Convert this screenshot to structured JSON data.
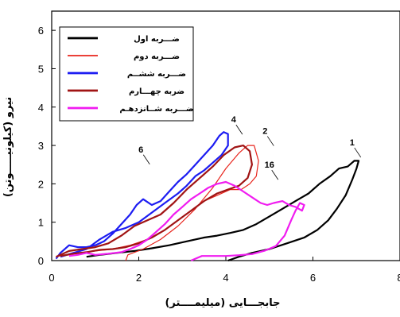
{
  "chart_data": {
    "type": "line",
    "xlabel": "جابجـــایی (میلیمــــتر)",
    "ylabel": "نیرو (کیلونیـــــوتن)",
    "xlim": [
      0,
      8
    ],
    "ylim": [
      0,
      6.5
    ],
    "xticks": [
      "0",
      "2",
      "4",
      "6",
      "8"
    ],
    "yticks": [
      "0",
      "1",
      "2",
      "3",
      "4",
      "5",
      "6"
    ],
    "legend_position": "top-left",
    "series": [
      {
        "name": "ضـــربه اول",
        "label": "1",
        "color": "#000000",
        "width": 2.2,
        "label_at": [
          6.9,
          3.0
        ],
        "points": [
          [
            4.05,
            0
          ],
          [
            4.3,
            0.1
          ],
          [
            4.6,
            0.2
          ],
          [
            5.0,
            0.3
          ],
          [
            5.4,
            0.45
          ],
          [
            5.8,
            0.6
          ],
          [
            6.1,
            0.8
          ],
          [
            6.35,
            1.05
          ],
          [
            6.55,
            1.35
          ],
          [
            6.75,
            1.7
          ],
          [
            6.9,
            2.1
          ],
          [
            7.0,
            2.4
          ],
          [
            7.05,
            2.6
          ],
          [
            6.95,
            2.6
          ],
          [
            6.8,
            2.45
          ],
          [
            6.6,
            2.4
          ],
          [
            6.4,
            2.2
          ],
          [
            6.15,
            2.0
          ],
          [
            5.9,
            1.75
          ],
          [
            5.6,
            1.55
          ],
          [
            5.3,
            1.35
          ],
          [
            5.0,
            1.15
          ],
          [
            4.7,
            0.95
          ],
          [
            4.4,
            0.8
          ],
          [
            4.1,
            0.72
          ],
          [
            3.8,
            0.65
          ],
          [
            3.5,
            0.6
          ],
          [
            3.1,
            0.5
          ],
          [
            2.7,
            0.4
          ],
          [
            2.3,
            0.32
          ],
          [
            1.9,
            0.25
          ],
          [
            1.5,
            0.2
          ],
          [
            1.1,
            0.15
          ],
          [
            0.8,
            0.1
          ]
        ]
      },
      {
        "name": "ضـــربه دوم",
        "label": "2",
        "color": "#e8241c",
        "width": 1.2,
        "label_at": [
          4.9,
          3.3
        ],
        "points": [
          [
            1.7,
            0
          ],
          [
            1.75,
            0.15
          ],
          [
            2.1,
            0.3
          ],
          [
            2.5,
            0.55
          ],
          [
            2.9,
            0.9
          ],
          [
            3.3,
            1.35
          ],
          [
            3.7,
            1.9
          ],
          [
            4.0,
            2.4
          ],
          [
            4.3,
            2.8
          ],
          [
            4.5,
            3.0
          ],
          [
            4.65,
            3.0
          ],
          [
            4.75,
            2.6
          ],
          [
            4.7,
            2.2
          ],
          [
            4.55,
            2.0
          ],
          [
            4.35,
            1.85
          ],
          [
            4.1,
            1.85
          ],
          [
            3.8,
            1.7
          ],
          [
            3.5,
            1.55
          ],
          [
            3.2,
            1.3
          ],
          [
            2.9,
            1.05
          ],
          [
            2.6,
            0.8
          ],
          [
            2.2,
            0.55
          ],
          [
            1.8,
            0.4
          ],
          [
            1.4,
            0.3
          ],
          [
            1.0,
            0.25
          ],
          [
            0.6,
            0.2
          ],
          [
            0.3,
            0.15
          ],
          [
            0.1,
            0.1
          ]
        ]
      },
      {
        "name": "ضـــربه ششــم",
        "label": "6",
        "color": "#1c1cf2",
        "width": 2.2,
        "label_at": [
          2.05,
          2.82
        ],
        "points": [
          [
            0.1,
            0.05
          ],
          [
            0.2,
            0.2
          ],
          [
            0.4,
            0.4
          ],
          [
            0.6,
            0.35
          ],
          [
            0.8,
            0.35
          ],
          [
            1.0,
            0.4
          ],
          [
            1.2,
            0.5
          ],
          [
            1.4,
            0.7
          ],
          [
            1.6,
            0.95
          ],
          [
            1.8,
            1.2
          ],
          [
            1.95,
            1.45
          ],
          [
            2.1,
            1.6
          ],
          [
            2.3,
            1.45
          ],
          [
            2.5,
            1.55
          ],
          [
            2.7,
            1.8
          ],
          [
            2.9,
            2.05
          ],
          [
            3.1,
            2.25
          ],
          [
            3.3,
            2.5
          ],
          [
            3.5,
            2.75
          ],
          [
            3.7,
            3.0
          ],
          [
            3.85,
            3.25
          ],
          [
            3.95,
            3.35
          ],
          [
            4.05,
            3.3
          ],
          [
            4.05,
            3.0
          ],
          [
            3.9,
            2.75
          ],
          [
            3.7,
            2.55
          ],
          [
            3.5,
            2.35
          ],
          [
            3.3,
            2.2
          ],
          [
            3.1,
            1.95
          ],
          [
            2.9,
            1.75
          ],
          [
            2.6,
            1.5
          ],
          [
            2.3,
            1.25
          ],
          [
            2.0,
            1.0
          ],
          [
            1.7,
            0.85
          ],
          [
            1.4,
            0.75
          ],
          [
            1.1,
            0.55
          ],
          [
            0.8,
            0.3
          ],
          [
            0.5,
            0.2
          ],
          [
            0.2,
            0.1
          ]
        ]
      },
      {
        "name": "ضربه چهـــارم",
        "label": "4",
        "color": "#a01414",
        "width": 2.2,
        "label_at": [
          4.18,
          3.6
        ],
        "points": [
          [
            0.1,
            0.1
          ],
          [
            0.4,
            0.25
          ],
          [
            0.7,
            0.3
          ],
          [
            1.0,
            0.35
          ],
          [
            1.3,
            0.45
          ],
          [
            1.6,
            0.65
          ],
          [
            1.9,
            0.9
          ],
          [
            2.2,
            1.05
          ],
          [
            2.5,
            1.2
          ],
          [
            2.8,
            1.5
          ],
          [
            3.1,
            1.85
          ],
          [
            3.4,
            2.15
          ],
          [
            3.7,
            2.45
          ],
          [
            3.95,
            2.75
          ],
          [
            4.2,
            2.95
          ],
          [
            4.4,
            3.0
          ],
          [
            4.55,
            2.85
          ],
          [
            4.6,
            2.5
          ],
          [
            4.5,
            2.15
          ],
          [
            4.3,
            1.95
          ],
          [
            4.05,
            1.85
          ],
          [
            3.8,
            1.75
          ],
          [
            3.5,
            1.55
          ],
          [
            3.2,
            1.3
          ],
          [
            2.9,
            1.05
          ],
          [
            2.6,
            0.8
          ],
          [
            2.3,
            0.6
          ],
          [
            2.0,
            0.45
          ],
          [
            1.7,
            0.35
          ],
          [
            1.4,
            0.3
          ],
          [
            1.1,
            0.28
          ],
          [
            0.8,
            0.22
          ],
          [
            0.5,
            0.18
          ],
          [
            0.2,
            0.12
          ]
        ]
      },
      {
        "name": "ضـــربه شــانزدهـم",
        "label": "16",
        "color": "#f01cf0",
        "width": 2.2,
        "label_at": [
          5.0,
          2.42
        ],
        "points": [
          [
            3.2,
            0
          ],
          [
            3.3,
            0.05
          ],
          [
            3.45,
            0.12
          ],
          [
            3.7,
            0.12
          ],
          [
            4.0,
            0.12
          ],
          [
            4.3,
            0.14
          ],
          [
            4.6,
            0.17
          ],
          [
            4.9,
            0.26
          ],
          [
            5.15,
            0.38
          ],
          [
            5.35,
            0.65
          ],
          [
            5.5,
            1.05
          ],
          [
            5.6,
            1.3
          ],
          [
            5.7,
            1.5
          ],
          [
            5.8,
            1.45
          ],
          [
            5.75,
            1.3
          ],
          [
            5.6,
            1.4
          ],
          [
            5.45,
            1.45
          ],
          [
            5.3,
            1.55
          ],
          [
            5.1,
            1.5
          ],
          [
            4.95,
            1.45
          ],
          [
            4.8,
            1.5
          ],
          [
            4.6,
            1.65
          ],
          [
            4.4,
            1.8
          ],
          [
            4.2,
            1.95
          ],
          [
            4.0,
            2.05
          ],
          [
            3.8,
            2.0
          ],
          [
            3.6,
            1.9
          ],
          [
            3.4,
            1.75
          ],
          [
            3.2,
            1.6
          ],
          [
            3.0,
            1.4
          ],
          [
            2.8,
            1.2
          ],
          [
            2.6,
            0.95
          ],
          [
            2.4,
            0.75
          ],
          [
            2.2,
            0.55
          ],
          [
            2.0,
            0.4
          ],
          [
            1.8,
            0.3
          ],
          [
            1.6,
            0.22
          ],
          [
            1.3,
            0.18
          ],
          [
            1.0,
            0.15
          ],
          [
            0.8,
            0.2
          ],
          [
            0.6,
            0.15
          ],
          [
            0.4,
            0.12
          ]
        ]
      }
    ]
  }
}
